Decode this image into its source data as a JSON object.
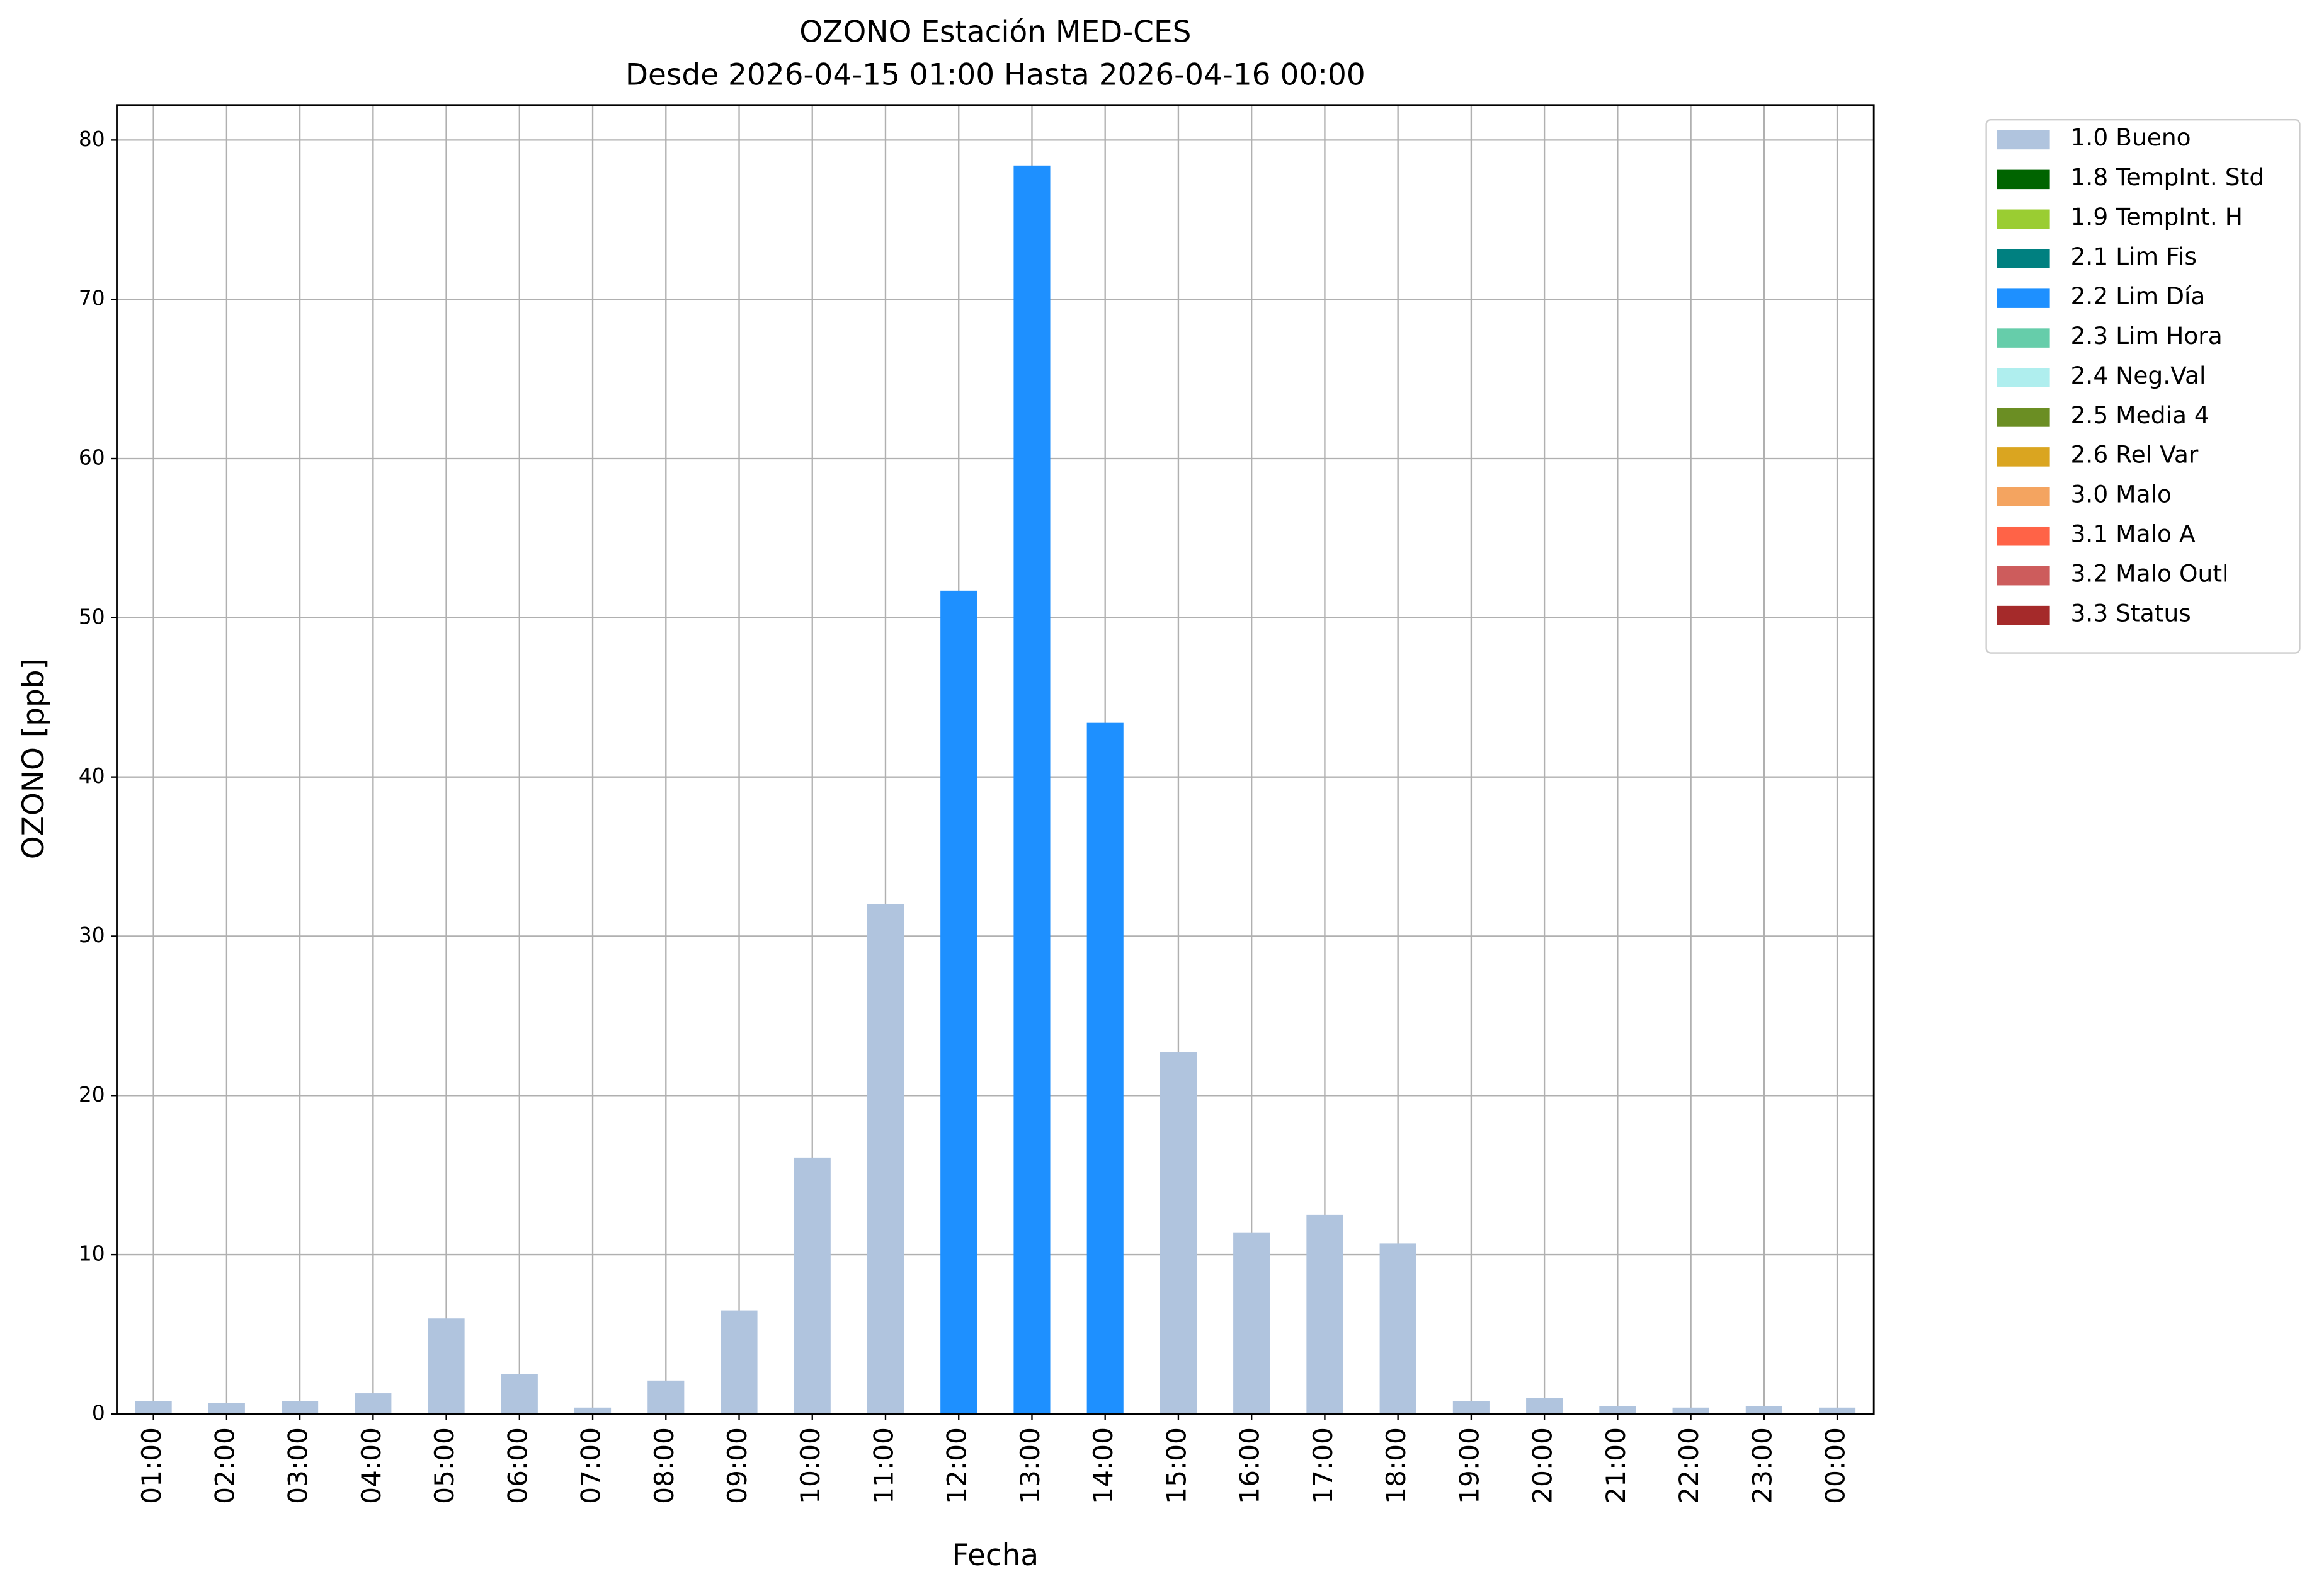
{
  "chart_data": {
    "type": "bar",
    "stacked": true,
    "title": "OZONO Estación MED-CES",
    "subtitle": "Desde 2026-04-15 01:00 Hasta 2026-04-16 00:00",
    "x_label": "Fecha",
    "y_label": "OZONO [ppb]",
    "categories": [
      "01:00",
      "02:00",
      "03:00",
      "04:00",
      "05:00",
      "06:00",
      "07:00",
      "08:00",
      "09:00",
      "10:00",
      "11:00",
      "12:00",
      "13:00",
      "14:00",
      "15:00",
      "16:00",
      "17:00",
      "18:00",
      "19:00",
      "20:00",
      "21:00",
      "22:00",
      "23:00",
      "00:00"
    ],
    "series": [
      {
        "name": "1.0 Bueno",
        "color": "#b0c4de",
        "values": [
          0.8,
          0.7,
          0.8,
          1.3,
          6.0,
          2.5,
          0.4,
          2.1,
          6.5,
          16.1,
          32.0,
          null,
          null,
          null,
          22.7,
          11.4,
          12.5,
          10.7,
          0.8,
          1.0,
          0.5,
          0.4,
          0.5,
          0.4
        ]
      },
      {
        "name": "1.8 TempInt. Std",
        "color": "#006400",
        "values": [
          null,
          null,
          null,
          null,
          null,
          null,
          null,
          null,
          null,
          null,
          null,
          null,
          null,
          null,
          null,
          null,
          null,
          null,
          null,
          null,
          null,
          null,
          null,
          null
        ]
      },
      {
        "name": "1.9 TempInt. H",
        "color": "#9acd32",
        "values": [
          null,
          null,
          null,
          null,
          null,
          null,
          null,
          null,
          null,
          null,
          null,
          null,
          null,
          null,
          null,
          null,
          null,
          null,
          null,
          null,
          null,
          null,
          null,
          null
        ]
      },
      {
        "name": "2.1 Lim Fis",
        "color": "#008080",
        "values": [
          null,
          null,
          null,
          null,
          null,
          null,
          null,
          null,
          null,
          null,
          null,
          null,
          null,
          null,
          null,
          null,
          null,
          null,
          null,
          null,
          null,
          null,
          null,
          null
        ]
      },
      {
        "name": "2.2 Lim Día",
        "color": "#1e90ff",
        "values": [
          null,
          null,
          null,
          null,
          null,
          null,
          null,
          null,
          null,
          null,
          null,
          51.7,
          78.4,
          43.4,
          null,
          null,
          null,
          null,
          null,
          null,
          null,
          null,
          null,
          null
        ]
      },
      {
        "name": "2.3 Lim Hora",
        "color": "#66cdaa",
        "values": [
          null,
          null,
          null,
          null,
          null,
          null,
          null,
          null,
          null,
          null,
          null,
          null,
          null,
          null,
          null,
          null,
          null,
          null,
          null,
          null,
          null,
          null,
          null,
          null
        ]
      },
      {
        "name": "2.4 Neg.Val",
        "color": "#afeeee",
        "values": [
          null,
          null,
          null,
          null,
          null,
          null,
          null,
          null,
          null,
          null,
          null,
          null,
          null,
          null,
          null,
          null,
          null,
          null,
          null,
          null,
          null,
          null,
          null,
          null
        ]
      },
      {
        "name": "2.5 Media 4",
        "color": "#6b8e23",
        "values": [
          null,
          null,
          null,
          null,
          null,
          null,
          null,
          null,
          null,
          null,
          null,
          null,
          null,
          null,
          null,
          null,
          null,
          null,
          null,
          null,
          null,
          null,
          null,
          null
        ]
      },
      {
        "name": "2.6 Rel Var",
        "color": "#daa520",
        "values": [
          null,
          null,
          null,
          null,
          null,
          null,
          null,
          null,
          null,
          null,
          null,
          null,
          null,
          null,
          null,
          null,
          null,
          null,
          null,
          null,
          null,
          null,
          null,
          null
        ]
      },
      {
        "name": "3.0 Malo",
        "color": "#f4a460",
        "values": [
          null,
          null,
          null,
          null,
          null,
          null,
          null,
          null,
          null,
          null,
          null,
          null,
          null,
          null,
          null,
          null,
          null,
          null,
          null,
          null,
          null,
          null,
          null,
          null
        ]
      },
      {
        "name": "3.1 Malo A",
        "color": "#ff6347",
        "values": [
          null,
          null,
          null,
          null,
          null,
          null,
          null,
          null,
          null,
          null,
          null,
          null,
          null,
          null,
          null,
          null,
          null,
          null,
          null,
          null,
          null,
          null,
          null,
          null
        ]
      },
      {
        "name": "3.2 Malo Outl",
        "color": "#cd5c5c",
        "values": [
          null,
          null,
          null,
          null,
          null,
          null,
          null,
          null,
          null,
          null,
          null,
          null,
          null,
          null,
          null,
          null,
          null,
          null,
          null,
          null,
          null,
          null,
          null,
          null
        ]
      },
      {
        "name": "3.3 Status",
        "color": "#a52a2a",
        "values": [
          null,
          null,
          null,
          null,
          null,
          null,
          null,
          null,
          null,
          null,
          null,
          null,
          null,
          null,
          null,
          null,
          null,
          null,
          null,
          null,
          null,
          null,
          null,
          null
        ]
      }
    ],
    "ylim": [
      0,
      82.2
    ],
    "yticks": [
      0,
      10,
      20,
      30,
      40,
      50,
      60,
      70,
      80
    ],
    "grid": true,
    "legend": "outside right"
  }
}
